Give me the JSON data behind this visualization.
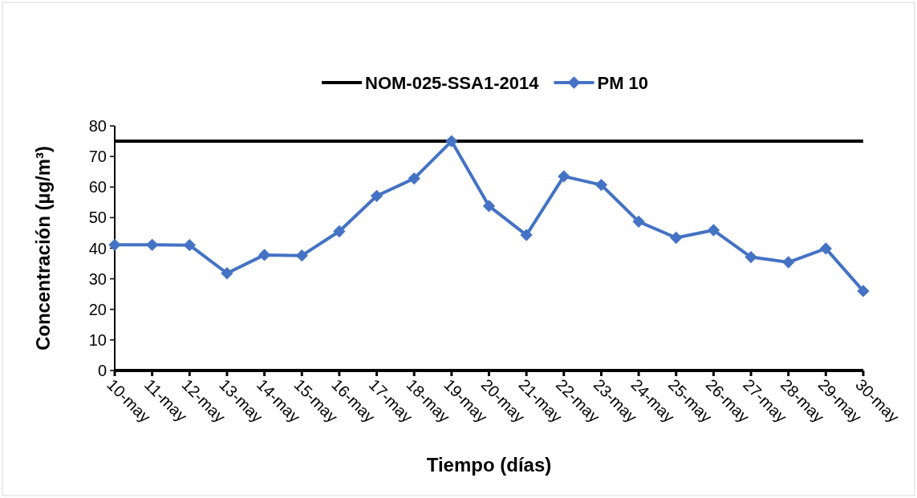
{
  "chart_data": {
    "type": "line",
    "xlabel": "Tiempo (días)",
    "ylabel": "Concentración (µg/m³)",
    "categories": [
      "10-may",
      "11-may",
      "12-may",
      "13-may",
      "14-may",
      "15-may",
      "16-may",
      "17-may",
      "18-may",
      "19-may",
      "20-may",
      "21-may",
      "22-may",
      "23-may",
      "24-may",
      "25-may",
      "26-may",
      "27-may",
      "28-may",
      "29-may",
      "30-may"
    ],
    "series": [
      {
        "name": "NOM-025-SSA1-2014",
        "color": "#000000",
        "marker": "none",
        "values": [
          75,
          75,
          75,
          75,
          75,
          75,
          75,
          75,
          75,
          75,
          75,
          75,
          75,
          75,
          75,
          75,
          75,
          75,
          75,
          75,
          75
        ]
      },
      {
        "name": "PM 10",
        "color": "#4472c4",
        "marker": "diamond",
        "values": [
          41.1,
          41.1,
          41,
          31.8,
          37.8,
          37.6,
          45.5,
          57.1,
          62.8,
          75,
          53.8,
          44.3,
          63.5,
          60.7,
          48.7,
          43.4,
          45.9,
          37.1,
          35.4,
          39.9,
          26
        ]
      }
    ],
    "ylim": [
      0,
      80
    ],
    "yticks": [
      0,
      10,
      20,
      30,
      40,
      50,
      60,
      70,
      80
    ],
    "grid": false,
    "legend": "top"
  }
}
